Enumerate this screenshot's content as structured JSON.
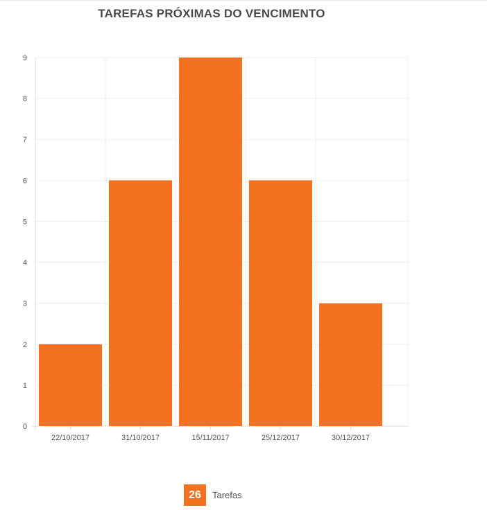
{
  "colors": {
    "bar": "#f37221",
    "grid": "#eeeeee",
    "axis": "#dddddd",
    "text": "#555555"
  },
  "chart_data": {
    "type": "bar",
    "title": "TAREFAS PRÓXIMAS DO VENCIMENTO",
    "categories": [
      "22/10/2017",
      "31/10/2017",
      "15/11/2017",
      "25/12/2017",
      "30/12/2017"
    ],
    "series": [
      {
        "name": "Tarefas",
        "values": [
          2,
          6,
          9,
          6,
          3
        ]
      }
    ],
    "ylim": [
      0,
      9
    ],
    "yticks": [
      0,
      1,
      2,
      3,
      4,
      5,
      6,
      7,
      8,
      9
    ],
    "grid": true,
    "legend": "bottom-center"
  },
  "legend": {
    "total": "26",
    "label": "Tarefas"
  }
}
